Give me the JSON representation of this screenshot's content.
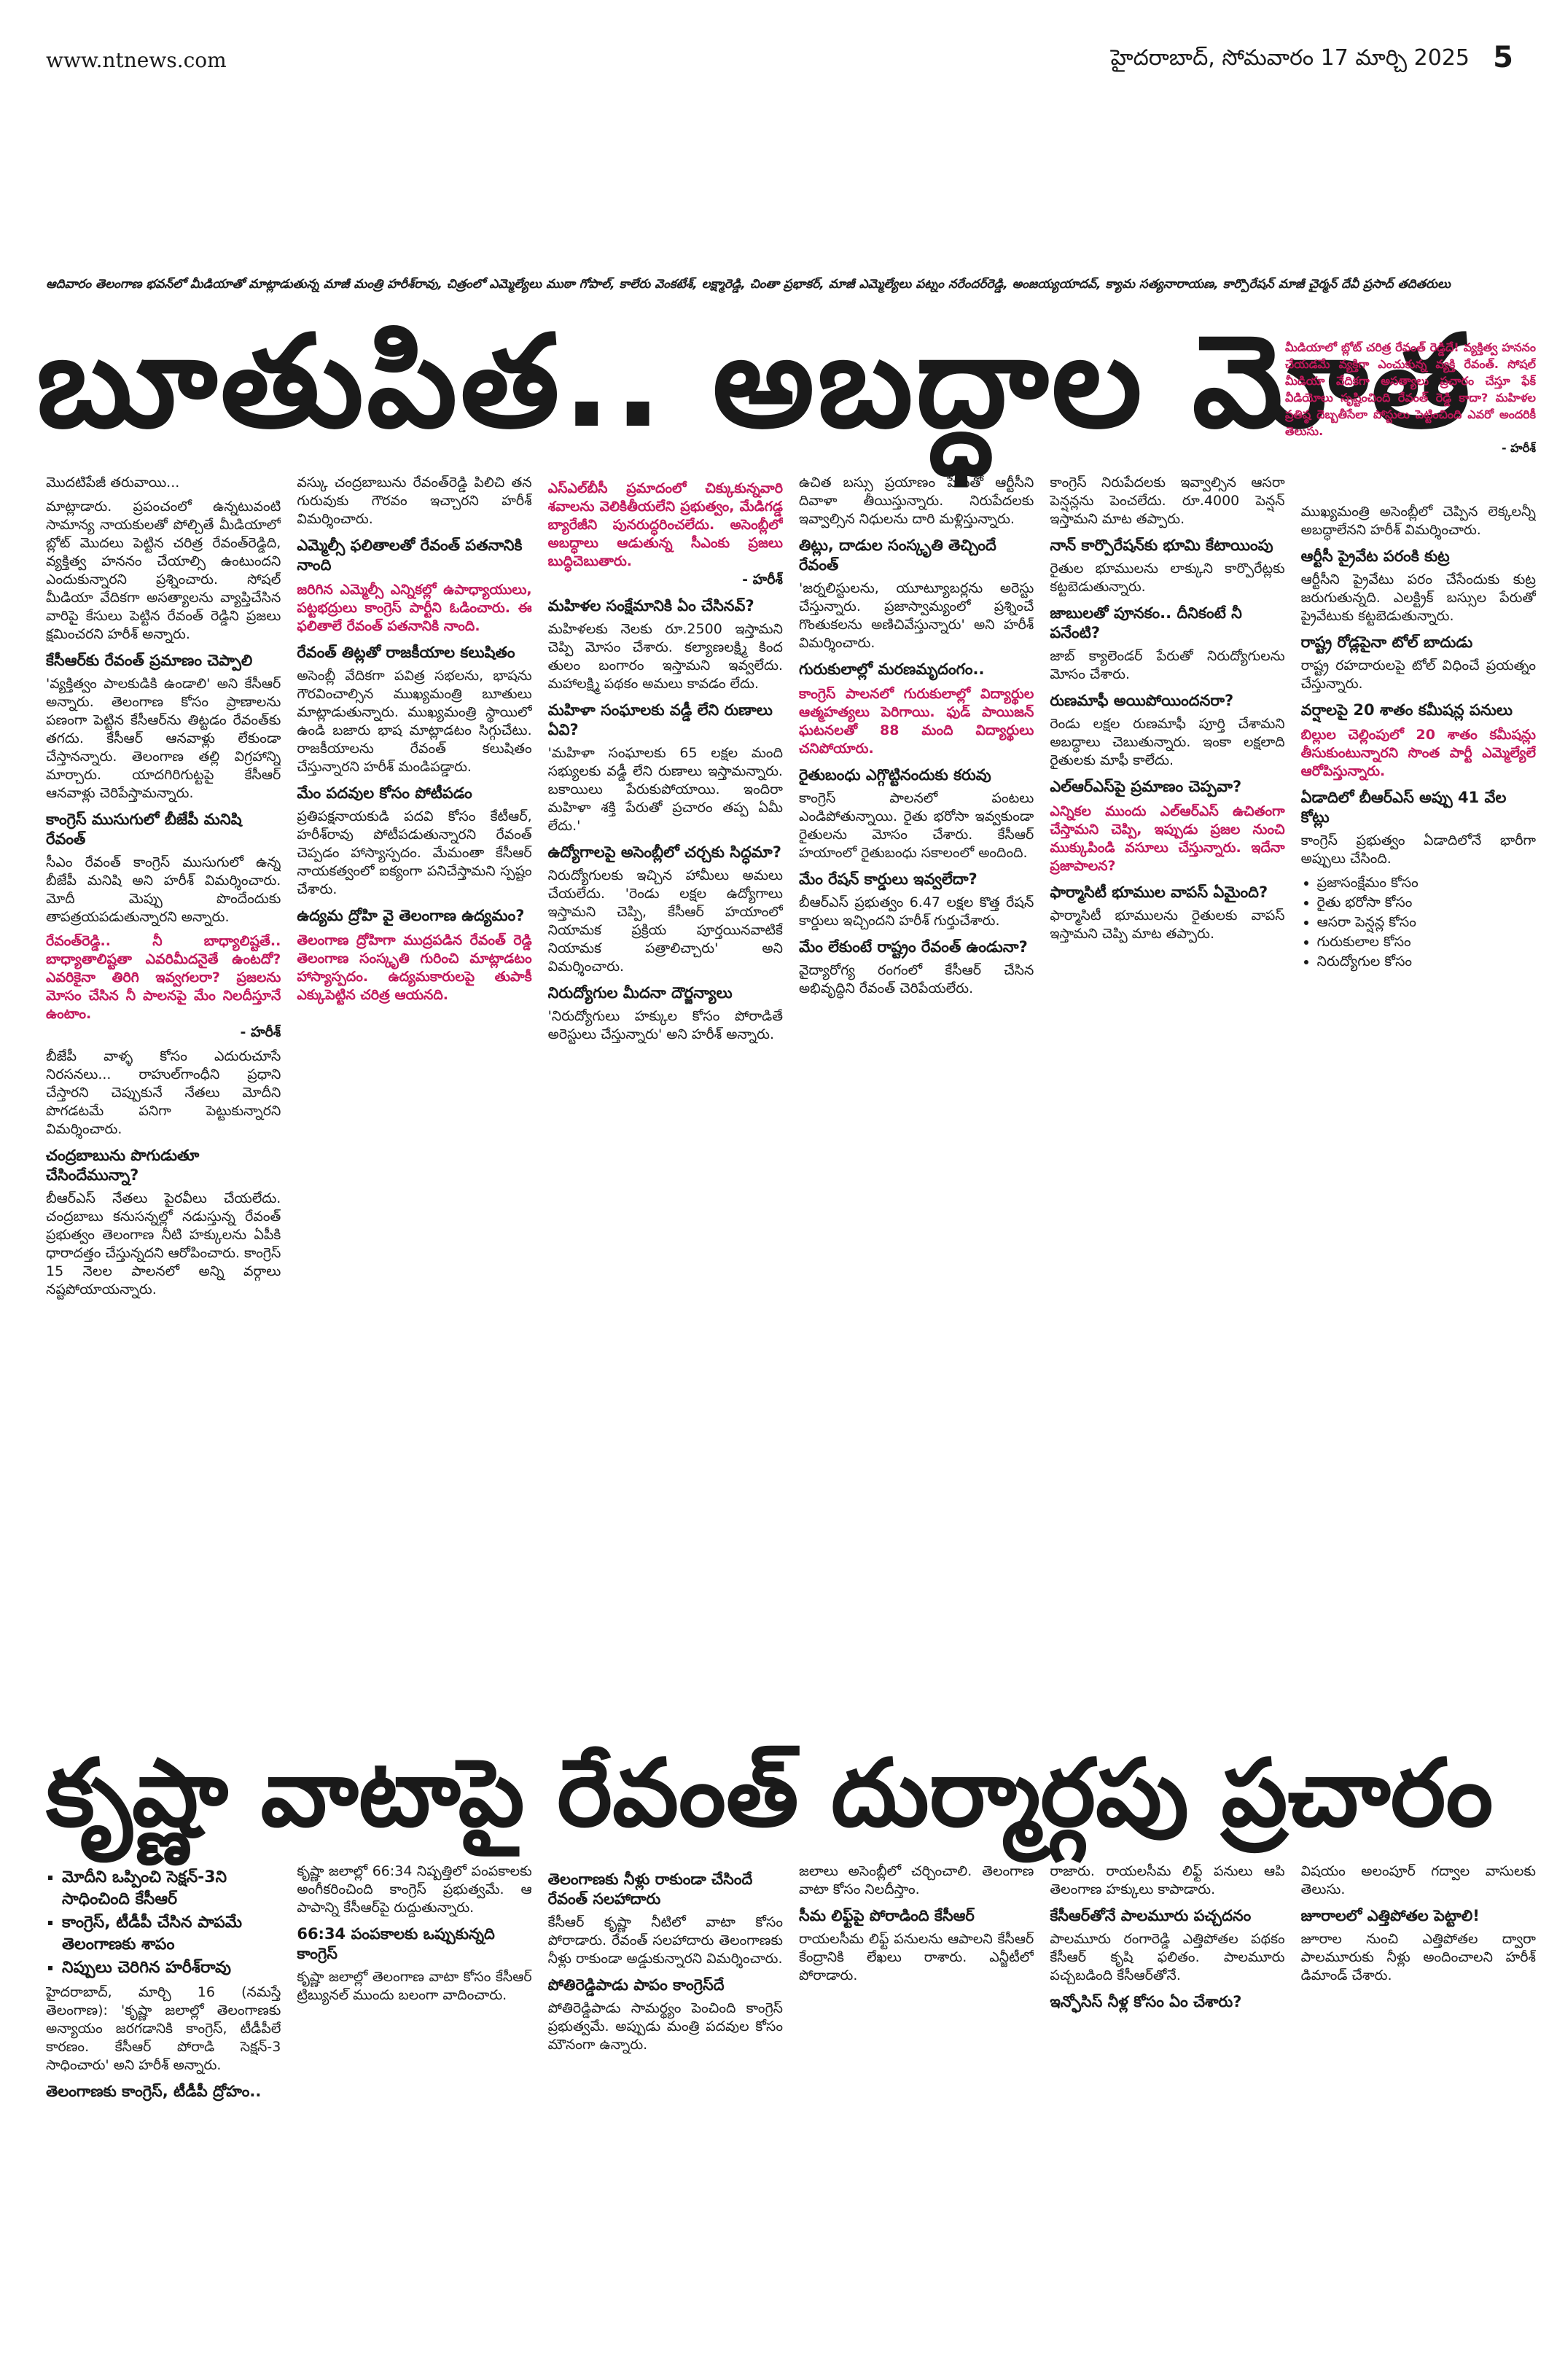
{
  "header": {
    "site": "www.ntnews.com",
    "dateline": "హైదరాబాద్, సోమవారం 17 మార్చి 2025",
    "page": "5"
  },
  "photo_caption": "ఆదివారం తెలంగాణ భవన్‌లో మీడియాతో మాట్లాడుతున్న మాజీ మంత్రి హరీశ్‌రావు, చిత్రంలో ఎమ్మెల్యేలు ముఠా గోపాల్, కాలేరు వెంకటేశ్, లక్ష్మారెడ్డి, చింతా ప్రభాకర్, మాజీ ఎమ్మెల్యేలు పట్నం నరేందర్‌రెడ్డి, అంజయ్యయాదవ్, క్యామ సత్యనారాయణ, కార్పొరేషన్ మాజీ చైర్మన్ దేవీ ప్రసాద్ తదితరులు",
  "story1": {
    "headline": "బూతుపిత.. అబద్ధాల మోత",
    "corner_box": {
      "highlight": "మీడియాలో బ్లోట్ చరిత్ర రేవంత్ రెడ్డిదే! వ్యక్తిత్వ హననం చేయడమే వ్యక్తిగా ఎంచుకున్న వ్యక్తి రేవంత్. సోషల్ మీడియా వేదికగా అసత్యాలు ప్రచారం చేస్తూ ఫేక్ వీడియోలు సృష్టించింది రేవంత్‌ రెడ్డి కాదా? మహిళల ప్రతిష్ఠ దెబ్బతీసేలా పోస్టులు పెట్టించింది ఎవరో అందరికీ తెలుసు.",
      "signature": "- హరీశ్"
    },
    "columns": [
      [
        {
          "text": "మొదటిపేజీ తరువాయి..."
        },
        {
          "text": "మాట్లాడారు. ప్రపంచంలో ఉన్నటువంటి సామాన్య నాయకులతో పోల్చితే మీడియాలో బ్లోట్ మొదలు పెట్టిన చరిత్ర రేవంత్‌రెడ్డిది, వ్యక్తిత్వ హననం చేయాల్సి ఉంటుందని ఎందుకున్నారని ప్రశ్నించారు. సోషల్ మీడియా వేదికగా అసత్యాలను వ్యాప్తిచేసిన వారిపై కేసులు పెట్టిన రేవంత్ రెడ్డిని ప్రజలు క్షమించరని హరీశ్ అన్నారు."
        },
        {
          "subhead": "కేసీఆర్‌కు రేవంత్ ప్రమాణం చెప్పాలి"
        },
        {
          "text": "'వ్యక్తిత్వం పాలకుడికి ఉండాలి' అని కేసీఆర్ అన్నారు. తెలంగాణ కోసం ప్రాణాలను పణంగా పెట్టిన కేసీఆర్‌ను తిట్టడం రేవంత్‌కు తగదు. కేసీఆర్ ఆనవాళ్లు లేకుండా చేస్తానన్నారు. తెలంగాణ తల్లి విగ్రహాన్ని మార్చారు. యాదగిరిగుట్టపై కేసీఆర్ ఆనవాళ్లు చెరిపేస్తామన్నారు."
        },
        {
          "subhead": "కాంగ్రెస్ ముసుగులో బీజేపీ మనిషి రేవంత్"
        },
        {
          "text": "సీఎం రేవంత్ కాంగ్రెస్ ముసుగులో ఉన్న బీజేపీ మనిషి అని హరీశ్ విమర్శించారు. మోదీ మెప్పు పొందేందుకు తాపత్రయపడుతున్నారని అన్నారు."
        },
        {
          "highlight": "రేవంత్‌రెడ్డి.. నీ బాధ్యాలిష్టతే.. బాధ్యాతాలిష్టతా ఎవరిమీదనైతే ఉంటదో? ఎవరికైనా తిరిగి ఇవ్వగలరా? ప్రజలను మోసం చేసిన నీ పాలనపై మేం నిలదీస్తూనే ఉంటాం.",
          "signature": "- హరీశ్ "
        },
        {
          "text": "బీజేపీ వాళ్ళ కోసం ఎదురుచూసే నిరసనలు... రాహుల్‌గాంధీని ప్రధాని చేస్తారని చెప్పుకునే నేతలు మోదీని పొగడటమే పనిగా పెట్టుకున్నారని విమర్శించారు."
        },
        {
          "subhead": "చంద్రబాబును పొగుడుతూ చేసిందేమున్నా?"
        },
        {
          "text": "బీఆర్ఎస్ నేతలు పైరవీలు చేయలేదు. చంద్రబాబు కనుసన్నల్లో నడుస్తున్న రేవంత్ ప్రభుత్వం తెలంగాణ నీటి హక్కులను ఏపీకి ధారాదత్తం చేస్తున్నదని ఆరోపించారు. కాంగ్రెస్ 15 నెలల పాలనలో అన్ని వర్గాలు నష్టపోయాయన్నారు."
        }
      ],
      [
        {
          "text": "వస్కు చంద్రబాబును రేవంత్‌రెడ్డి పిలిచి తన గురువుకు గౌరవం ఇచ్చారని హరీశ్ విమర్శించారు."
        },
        {
          "subhead": "ఎమ్మెల్సీ ఫలితాలతో రేవంత్ పతనానికి నాంది"
        },
        {
          "highlight": "జరిగిన ఎమ్మెల్సీ ఎన్నికల్లో ఉపాధ్యాయులు, పట్టభద్రులు కాంగ్రెస్ పార్టీని ఓడించారు. ఈ ఫలితాలే రేవంత్ పతనానికి నాంది."
        },
        {
          "subhead": "రేవంత్ తిట్లతో రాజకీయాల కలుషితం"
        },
        {
          "text": "అసెంబ్లీ వేదికగా పవిత్ర సభలను, భాషను గౌరవించాల్సిన ముఖ్యమంత్రి బూతులు మాట్లాడుతున్నారు. ముఖ్యమంత్రి స్థాయిలో ఉండి బజారు భాష మాట్లాడటం సిగ్గుచేటు. రాజకీయాలను రేవంత్ కలుషితం చేస్తున్నారని హరీశ్ మండిపడ్డారు."
        },
        {
          "subhead": "మేం పదవుల కోసం పోటీపడం"
        },
        {
          "text": "ప్రతిపక్షనాయకుడి పదవి కోసం కేటీఆర్, హరీశ్‌రావు పోటీపడుతున్నారని రేవంత్ చెప్పడం హాస్యాస్పదం. మేమంతా కేసీఆర్ నాయకత్వంలో ఐక్యంగా పనిచేస్తామని స్పష్టం చేశారు."
        },
        {
          "subhead": "ఉద్యమ ద్రోహి వై తెలంగాణ ఉద్యమం?"
        },
        {
          "highlight": "తెలంగాణ ద్రోహిగా ముద్రపడిన రేవంత్ రెడ్డి తెలంగాణ సంస్కృతి గురించి మాట్లాడటం హాస్యాస్పదం. ఉద్యమకారులపై తుపాకీ ఎక్కుపెట్టిన చరిత్ర ఆయనది."
        }
      ],
      [
        {
          "highlight": "ఎస్ఎల్‌బీసీ ప్రమాదంలో చిక్కుకున్నవారి శవాలను వెలికితీయలేని ప్రభుత్వం, మేడిగడ్డ బ్యారేజీని పునరుద్ధరించలేదు. అసెంబ్లీలో అబద్ధాలు ఆడుతున్న సీఎంకు ప్రజలు బుద్ధిచెబుతారు.",
          "signature": "- హరీశ్  "
        },
        {
          "subhead": "మహిళల సంక్షేమానికి ఏం చేసినవ్?"
        },
        {
          "text": "మహిళలకు నెలకు రూ.2500 ఇస్తామని చెప్పి మోసం చేశారు. కల్యాణలక్ష్మి కింద తులం బంగారం ఇస్తామని ఇవ్వలేదు. మహాలక్ష్మి పథకం అమలు కావడం లేదు."
        },
        {
          "subhead": "మహిళా సంఘాలకు వడ్డీ లేని రుణాలు ఏవి?"
        },
        {
          "text": "'మహిళా సంఘాలకు 65 లక్షల మంది సభ్యులకు వడ్డీ లేని రుణాలు ఇస్తామన్నారు. బకాయిలు పేరుకుపోయాయి. ఇందిరా మహిళా శక్తి పేరుతో ప్రచారం తప్ప ఏమీ లేదు.'"
        },
        {
          "subhead": "ఉద్యోగాలపై అసెంబ్లీలో చర్చకు సిద్ధమా?"
        },
        {
          "text": "నిరుద్యోగులకు ఇచ్చిన హామీలు అమలు చేయలేదు. 'రెండు లక్షల ఉద్యోగాలు ఇస్తామని చెప్పి, కేసీఆర్ హయాంలో నియామక ప్రక్రియ పూర్తయినవాటికే నియామక పత్రాలిచ్చారు' అని విమర్శించారు."
        },
        {
          "subhead": "నిరుద్యోగుల మీదనా దౌర్జన్యాలు"
        },
        {
          "text": "'నిరుద్యోగులు హక్కుల కోసం పోరాడితే అరెస్టులు చేస్తున్నారు' అని హరీశ్ అన్నారు."
        }
      ],
      [
        {
          "text": "ఉచిత బస్సు ప్రయాణం పేరుతో ఆర్టీసీని దివాళా తీయిస్తున్నారు. నిరుపేదలకు ఇవ్వాల్సిన నిధులను దారి మళ్లిస్తున్నారు."
        },
        {
          "subhead": "తిట్లు, దాడుల సంస్కృతి తెచ్చిందే రేవంత్"
        },
        {
          "text": "'జర్నలిస్టులను, యూట్యూబర్లను అరెస్టు చేస్తున్నారు. ప్రజాస్వామ్యంలో ప్రశ్నించే గొంతుకలను అణిచివేస్తున్నారు' అని హరీశ్ విమర్శించారు."
        },
        {
          "subhead": "గురుకులాల్లో మరణమృదంగం.."
        },
        {
          "highlight": "కాంగ్రెస్ పాలనలో గురుకులాల్లో విద్యార్థుల ఆత్మహత్యలు పెరిగాయి. ఫుడ్ పాయిజన్ ఘటనలతో 88 మంది విద్యార్థులు చనిపోయారు."
        },
        {
          "subhead": "రైతుబంధు ఎగ్గొట్టినందుకు కరువు"
        },
        {
          "text": "కాంగ్రెస్ పాలనలో పంటలు ఎండిపోతున్నాయి. రైతు భరోసా ఇవ్వకుండా రైతులను మోసం చేశారు. కేసీఆర్ హయాంలో రైతుబంధు సకాలంలో అందింది."
        },
        {
          "subhead": "మేం రేషన్ కార్డులు ఇవ్వలేదా?"
        },
        {
          "text": "బీఆర్ఎస్ ప్రభుత్వం 6.47 లక్షల కొత్త రేషన్ కార్డులు ఇచ్చిందని హరీశ్ గుర్తుచేశారు."
        },
        {
          "subhead": "మేం లేకుంటే రాష్ట్రం రేవంత్ ఉండునా?"
        },
        {
          "text": "వైద్యారోగ్య రంగంలో కేసీఆర్ చేసిన అభివృద్ధిని రేవంత్ చెరిపేయలేరు."
        }
      ],
      [
        {
          "text": "కాంగ్రెస్ నిరుపేదలకు ఇవ్వాల్సిన ఆసరా పెన్షన్లను పెంచలేదు. రూ.4000 పెన్షన్ ఇస్తామని మాట తప్పారు."
        },
        {
          "subhead": "నాన్ కార్పొరేషన్‌కు భూమి కేటాయింపు"
        },
        {
          "text": "రైతుల భూములను లాక్కుని కార్పొరేట్లకు కట్టబెడుతున్నారు."
        },
        {
          "subhead": "జాబులతో పూనకం.. దీనికంటే నీ పనేంటి?"
        },
        {
          "text": "జాబ్ క్యాలెండర్ పేరుతో నిరుద్యోగులను మోసం చేశారు."
        },
        {
          "subhead": "రుణమాఫీ అయిపోయిందనరా?"
        },
        {
          "text": "రెండు లక్షల రుణమాఫీ పూర్తి చేశామని అబద్ధాలు చెబుతున్నారు. ఇంకా లక్షలాది రైతులకు మాఫీ కాలేదు."
        },
        {
          "subhead": "ఎల్ఆర్ఎస్‌పై ప్రమాణం చెప్పవా?"
        },
        {
          "highlight": "ఎన్నికల ముందు ఎల్ఆర్ఎస్‌ ఉచితంగా చేస్తామని చెప్పి, ఇప్పుడు ప్రజల నుంచి ముక్కుపిండి వసూలు చేస్తున్నారు. ఇదేనా ప్రజాపాలన?"
        },
        {
          "subhead": "ఫార్మాసిటీ భూముల వాపస్ ఏమైంది?"
        },
        {
          "text": "ఫార్మాసిటీ భూములను రైతులకు వాపస్ ఇస్తామని చెప్పి మాట తప్పారు."
        }
      ],
      [
        {
          "text": "ముఖ్యమంత్రి అసెంబ్లీలో చెప్పిన లెక్కలన్నీ అబద్ధాలేనని హరీశ్ విమర్శించారు."
        },
        {
          "subhead": "ఆర్టీసీ ప్రైవేట పరంకి కుట్ర"
        },
        {
          "text": "ఆర్టీసీని ప్రైవేటు పరం చేసేందుకు కుట్ర జరుగుతున్నది. ఎలక్ట్రిక్ బస్సుల పేరుతో ప్రైవేటుకు కట్టబెడుతున్నారు."
        },
        {
          "subhead": "రాష్ట్ర రోడ్లపైనా టోల్‌ బాదుడు"
        },
        {
          "text": "రాష్ట్ర రహదారులపై టోల్ విధించే ప్రయత్నం చేస్తున్నారు."
        },
        {
          "subhead": "వర్షాలపై 20 శాతం కమీషన్ల పనులు"
        },
        {
          "highlight": "బిల్లుల చెల్లింపులో 20 శాతం కమీషన్లు తీసుకుంటున్నారని సొంత పార్టీ ఎమ్మెల్యేలే ఆరోపిస్తున్నారు."
        },
        {
          "subhead": "ఏడాదిలో బీఆర్ఎస్‌ అప్పు 41 వేల కోట్లు"
        },
        {
          "text": "కాంగ్రెస్ ప్రభుత్వం ఏడాదిలోనే భారీగా అప్పులు చేసింది."
        },
        {
          "list": [
            "ప్రజాసంక్షేమం కోసం",
            "రైతు భరోసా కోసం",
            "ఆసరా పెన్షన్ల కోసం",
            "గురుకులాల కోసం",
            "నిరుద్యోగుల కోసం"
          ]
        }
      ]
    ]
  },
  "story2": {
    "headline": "కృష్ణా వాటాపై రేవంత్ దుర్మార్గపు ప్రచారం",
    "columns": [
      [
        {
          "bullets": [
            "మోదీని ఒప్పించి సెక్షన్-3ని సాధించింది కేసీఆర్",
            "కాంగ్రెస్, టీడీపీ చేసిన పాపమే తెలంగాణకు శాపం",
            "నిప్పులు చెరిగిన హరీశ్‌రావు"
          ]
        },
        {
          "text": "హైదరాబాద్, మార్చి 16 (నమస్తే తెలంగాణ): 'కృష్ణా జలాల్లో తెలంగాణకు అన్యాయం జరగడానికి కాంగ్రెస్, టీడీపీలే కారణం. కేసీఆర్ పోరాడి సెక్షన్-3 సాధించారు' అని హరీశ్ అన్నారు."
        },
        {
          "subhead": "తెలంగాణకు కాంగ్రెస్, టీడీపీ ద్రోహం.."
        }
      ],
      [
        {
          "text": "కృష్ణా జలాల్లో 66:34 నిష్పత్తిలో పంపకాలకు అంగీకరించింది కాంగ్రెస్ ప్రభుత్వమే. ఆ పాపాన్ని కేసీఆర్‌పై రుద్దుతున్నారు."
        },
        {
          "subhead": "66:34 పంపకాలకు ఒప్పుకున్నది కాంగ్రెస్"
        },
        {
          "text": "కృష్ణా జలాల్లో తెలంగాణ వాటా కోసం కేసీఆర్ ట్రిబ్యునల్ ముందు బలంగా వాదించారు."
        }
      ],
      [
        {
          "subhead": "తెలంగాణకు నీళ్లు రాకుండా చేసిందే రేవంత్ సలహాదారు"
        },
        {
          "text": "కేసీఆర్ కృష్ణా నీటిలో వాటా కోసం పోరాడారు. రేవంత్ సలహాదారు తెలంగాణకు నీళ్లు రాకుండా అడ్డుకున్నారని విమర్శించారు."
        },
        {
          "subhead": "పోతిరెడ్డిపాడు పాపం కాంగ్రెస్‌దే"
        },
        {
          "text": "పోతిరెడ్డిపాడు సామర్థ్యం పెంచింది కాంగ్రెస్ ప్రభుత్వమే. అప్పుడు మంత్రి పదవుల కోసం మౌనంగా ఉన్నారు."
        }
      ],
      [
        {
          "text": "జలాలు అసెంబ్లీలో చర్చించాలి. తెలంగాణ వాటా కోసం నిలదీస్తాం."
        },
        {
          "subhead": "సీమ లిఫ్ట్‌పై పోరాడింది కేసీఆర్"
        },
        {
          "text": "రాయలసీమ లిఫ్ట్ పనులను ఆపాలని కేసీఆర్ కేంద్రానికి లేఖలు రాశారు. ఎన్జీటీలో పోరాడారు."
        }
      ],
      [
        {
          "text": "రాజారు. రాయలసీమ లిఫ్ట్ పనులు ఆపి తెలంగాణ హక్కులు కాపాడారు."
        },
        {
          "subhead": "కేసీఆర్‌తోనే పాలమూరు పచ్చదనం"
        },
        {
          "text": "పాలమూరు రంగారెడ్డి ఎత్తిపోతల పథకం కేసీఆర్ కృషి ఫలితం. పాలమూరు పచ్చబడింది కేసీఆర్‌తోనే."
        },
        {
          "subhead": "ఇన్ఫోసిస్ నీళ్ల కోసం ఏం చేశారు?"
        }
      ],
      [
        {
          "text": "విషయం అలంపూర్ గద్వాల వాసులకు తెలుసు."
        },
        {
          "subhead": "జూరాలలో ఎత్తిపోతల పెట్టాలి!"
        },
        {
          "text": "జూరాల నుంచి ఎత్తిపోతల ద్వారా పాలమూరుకు నీళ్లు అందించాలని హరీశ్ డిమాండ్ చేశారు."
        }
      ]
    ]
  }
}
